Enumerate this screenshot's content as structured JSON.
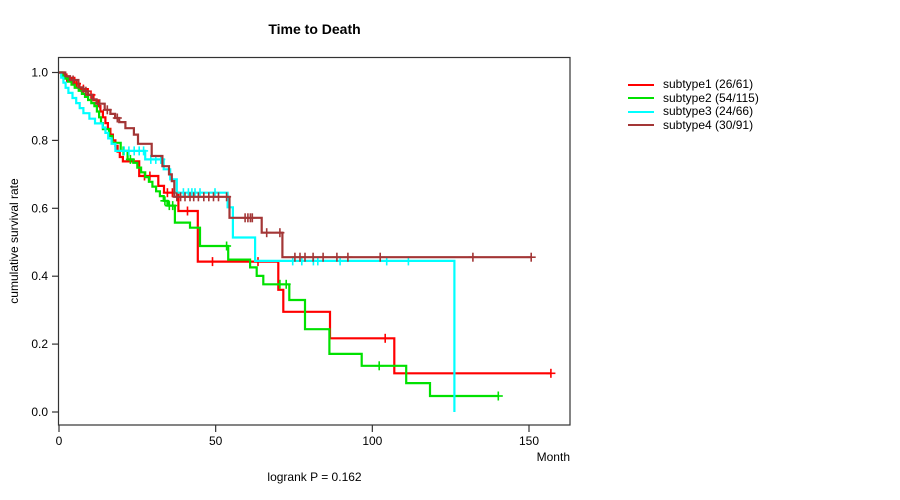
{
  "chart": {
    "title": "Time to Death",
    "annotation": "logrank P = 0.162"
  },
  "chart_data": {
    "type": "line",
    "variant": "kaplan-meier-step",
    "title": "Time to Death",
    "xlabel": "Month",
    "ylabel": "cumulative survival rate",
    "annotation": "logrank P = 0.162",
    "xlim": [
      0,
      163
    ],
    "ylim": [
      0.0,
      1.0
    ],
    "xticks": [
      0,
      50,
      100,
      150
    ],
    "yticks": [
      0.0,
      0.2,
      0.4,
      0.6,
      0.8,
      1.0
    ],
    "grid": false,
    "legend_position": "right",
    "axis_color": "#333333",
    "series": [
      {
        "name": "subtype1 (26/61)",
        "color": "#ff0000",
        "points": [
          [
            0,
            1
          ],
          [
            1.5,
            0.984
          ],
          [
            4.9,
            0.967
          ],
          [
            6.5,
            0.951
          ],
          [
            9.2,
            0.934
          ],
          [
            11,
            0.918
          ],
          [
            12.4,
            0.901
          ],
          [
            13.2,
            0.885
          ],
          [
            14,
            0.868
          ],
          [
            14.8,
            0.851
          ],
          [
            15.6,
            0.834
          ],
          [
            16.4,
            0.817
          ],
          [
            17.2,
            0.8
          ],
          [
            18,
            0.784
          ],
          [
            18.7,
            0.767
          ],
          [
            19.4,
            0.751
          ],
          [
            20.4,
            0.738
          ],
          [
            25.6,
            0.695
          ],
          [
            31.7,
            0.666
          ],
          [
            33.5,
            0.646
          ],
          [
            38.1,
            0.592
          ],
          [
            44.3,
            0.443
          ],
          [
            70,
            0.36
          ],
          [
            71.6,
            0.295
          ],
          [
            86.5,
            0.217
          ],
          [
            107,
            0.114
          ],
          [
            157,
            0.114
          ]
        ],
        "censors": [
          [
            2.5,
            0.984
          ],
          [
            5.6,
            0.967
          ],
          [
            7.8,
            0.951
          ],
          [
            10.2,
            0.934
          ],
          [
            27.3,
            0.695
          ],
          [
            29,
            0.695
          ],
          [
            34.6,
            0.646
          ],
          [
            36.2,
            0.646
          ],
          [
            41,
            0.592
          ],
          [
            49,
            0.443
          ],
          [
            63.5,
            0.443
          ],
          [
            104.1,
            0.217
          ],
          [
            157,
            0.114
          ]
        ]
      },
      {
        "name": "subtype2 (54/115)",
        "color": "#00e100",
        "points": [
          [
            0,
            1
          ],
          [
            1,
            0.991
          ],
          [
            2,
            0.982
          ],
          [
            2.9,
            0.973
          ],
          [
            4,
            0.964
          ],
          [
            5,
            0.955
          ],
          [
            6.3,
            0.946
          ],
          [
            7.3,
            0.937
          ],
          [
            8.3,
            0.928
          ],
          [
            9.3,
            0.919
          ],
          [
            10.3,
            0.91
          ],
          [
            11.3,
            0.901
          ],
          [
            12.1,
            0.885
          ],
          [
            12.8,
            0.868
          ],
          [
            13.4,
            0.851
          ],
          [
            14,
            0.833
          ],
          [
            16,
            0.813
          ],
          [
            17,
            0.793
          ],
          [
            19.7,
            0.769
          ],
          [
            21.9,
            0.744
          ],
          [
            23.7,
            0.734
          ],
          [
            25,
            0.72
          ],
          [
            26.2,
            0.706
          ],
          [
            27.5,
            0.692
          ],
          [
            28.7,
            0.678
          ],
          [
            29.8,
            0.664
          ],
          [
            31,
            0.65
          ],
          [
            32.2,
            0.636
          ],
          [
            33.4,
            0.622
          ],
          [
            34.6,
            0.608
          ],
          [
            37,
            0.558
          ],
          [
            41.8,
            0.543
          ],
          [
            45,
            0.489
          ],
          [
            54,
            0.449
          ],
          [
            61,
            0.426
          ],
          [
            63.1,
            0.401
          ],
          [
            65.2,
            0.376
          ],
          [
            73.5,
            0.33
          ],
          [
            78.5,
            0.244
          ],
          [
            86.3,
            0.171
          ],
          [
            96.6,
            0.136
          ],
          [
            110.8,
            0.085
          ],
          [
            118.4,
            0.047
          ],
          [
            140.2,
            0.047
          ]
        ],
        "censors": [
          [
            20.5,
            0.769
          ],
          [
            22.8,
            0.744
          ],
          [
            33.8,
            0.622
          ],
          [
            35.2,
            0.608
          ],
          [
            36.3,
            0.608
          ],
          [
            53.5,
            0.489
          ],
          [
            70.5,
            0.376
          ],
          [
            72.5,
            0.376
          ],
          [
            102.2,
            0.136
          ],
          [
            140.2,
            0.047
          ]
        ]
      },
      {
        "name": "subtype3 (24/66)",
        "color": "#00ffff",
        "points": [
          [
            0,
            1
          ],
          [
            0.7,
            0.985
          ],
          [
            1.4,
            0.97
          ],
          [
            2.1,
            0.955
          ],
          [
            3,
            0.94
          ],
          [
            4.3,
            0.925
          ],
          [
            5.5,
            0.91
          ],
          [
            6.6,
            0.895
          ],
          [
            7.8,
            0.88
          ],
          [
            9.7,
            0.864
          ],
          [
            11.5,
            0.85
          ],
          [
            13.9,
            0.838
          ],
          [
            14.8,
            0.822
          ],
          [
            15.7,
            0.806
          ],
          [
            16.8,
            0.79
          ],
          [
            18,
            0.769
          ],
          [
            27.5,
            0.744
          ],
          [
            33.4,
            0.715
          ],
          [
            35.5,
            0.685
          ],
          [
            37.6,
            0.646
          ],
          [
            53.8,
            0.603
          ],
          [
            55.5,
            0.514
          ],
          [
            62.6,
            0.445
          ],
          [
            126.2,
            0
          ]
        ],
        "censors": [
          [
            20.8,
            0.769
          ],
          [
            22.3,
            0.769
          ],
          [
            24,
            0.769
          ],
          [
            25.6,
            0.769
          ],
          [
            27,
            0.769
          ],
          [
            29.3,
            0.744
          ],
          [
            30.9,
            0.744
          ],
          [
            32.5,
            0.744
          ],
          [
            39.7,
            0.646
          ],
          [
            41.3,
            0.646
          ],
          [
            42.4,
            0.646
          ],
          [
            43.4,
            0.646
          ],
          [
            45,
            0.646
          ],
          [
            49.8,
            0.646
          ],
          [
            74.6,
            0.445
          ],
          [
            77.5,
            0.445
          ],
          [
            81.2,
            0.445
          ],
          [
            82.6,
            0.445
          ],
          [
            89.7,
            0.445
          ],
          [
            104.6,
            0.445
          ],
          [
            111.5,
            0.445
          ]
        ]
      },
      {
        "name": "subtype4 (30/91)",
        "color": "#a33636",
        "points": [
          [
            0,
            1
          ],
          [
            2,
            0.989
          ],
          [
            3.5,
            0.978
          ],
          [
            6.2,
            0.956
          ],
          [
            7.8,
            0.945
          ],
          [
            9.3,
            0.934
          ],
          [
            10.6,
            0.921
          ],
          [
            12,
            0.908
          ],
          [
            14.6,
            0.89
          ],
          [
            16.4,
            0.878
          ],
          [
            17.9,
            0.866
          ],
          [
            19.2,
            0.854
          ],
          [
            21.2,
            0.836
          ],
          [
            23.9,
            0.817
          ],
          [
            25.2,
            0.79
          ],
          [
            29.6,
            0.754
          ],
          [
            33,
            0.724
          ],
          [
            35.1,
            0.7
          ],
          [
            36,
            0.68
          ],
          [
            36.8,
            0.634
          ],
          [
            54.4,
            0.572
          ],
          [
            64.7,
            0.528
          ],
          [
            71.3,
            0.456
          ],
          [
            150.7,
            0.456
          ]
        ],
        "censors": [
          [
            4.5,
            0.978
          ],
          [
            8.6,
            0.945
          ],
          [
            13,
            0.908
          ],
          [
            15.4,
            0.89
          ],
          [
            18.6,
            0.866
          ],
          [
            37.6,
            0.634
          ],
          [
            38.8,
            0.634
          ],
          [
            40.2,
            0.634
          ],
          [
            41.8,
            0.634
          ],
          [
            43,
            0.634
          ],
          [
            44.5,
            0.634
          ],
          [
            46.2,
            0.634
          ],
          [
            47.8,
            0.634
          ],
          [
            49.3,
            0.634
          ],
          [
            50.9,
            0.634
          ],
          [
            53.5,
            0.634
          ],
          [
            59.4,
            0.572
          ],
          [
            60.3,
            0.572
          ],
          [
            61.1,
            0.572
          ],
          [
            61.7,
            0.572
          ],
          [
            66.3,
            0.528
          ],
          [
            70.5,
            0.528
          ],
          [
            75.3,
            0.456
          ],
          [
            76.9,
            0.456
          ],
          [
            78.5,
            0.456
          ],
          [
            81.1,
            0.456
          ],
          [
            84.3,
            0.456
          ],
          [
            88.7,
            0.456
          ],
          [
            92.2,
            0.456
          ],
          [
            102.5,
            0.456
          ],
          [
            132.1,
            0.456
          ],
          [
            150.7,
            0.456
          ]
        ]
      }
    ]
  },
  "legend": {
    "items": [
      {
        "label": "subtype1 (26/61)",
        "color": "#ff0000"
      },
      {
        "label": "subtype2 (54/115)",
        "color": "#00e100"
      },
      {
        "label": "subtype3 (24/66)",
        "color": "#00ffff"
      },
      {
        "label": "subtype4 (30/91)",
        "color": "#a33636"
      }
    ]
  }
}
